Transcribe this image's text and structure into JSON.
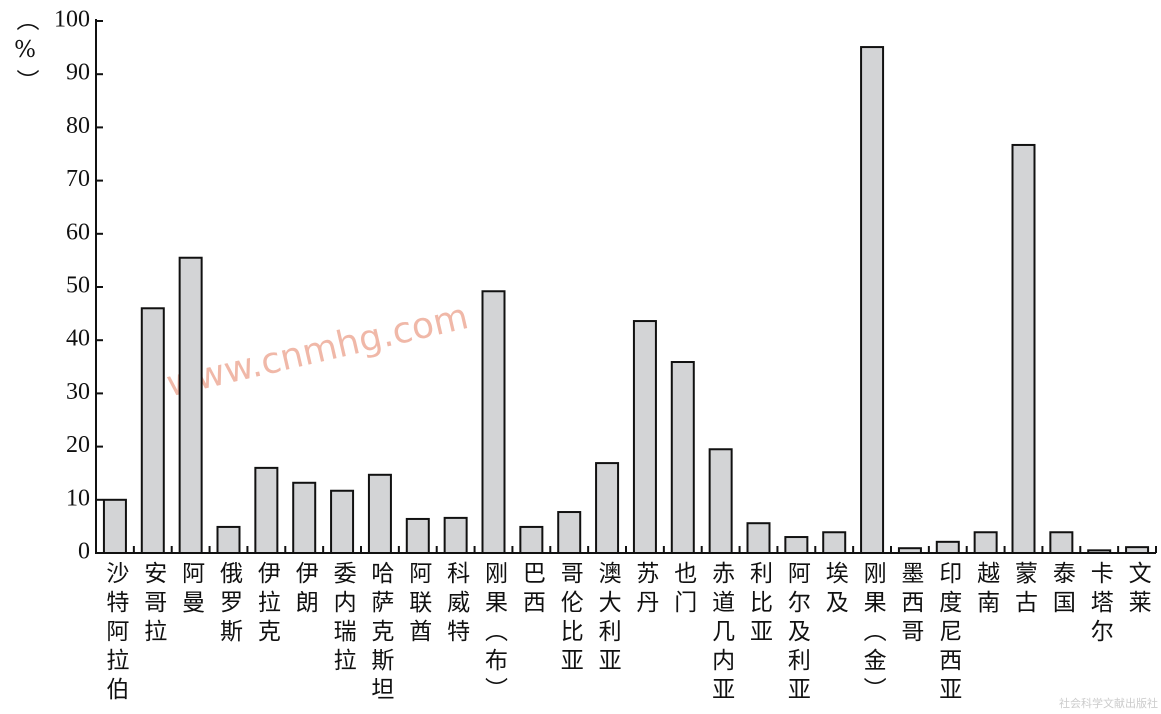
{
  "chart_data": {
    "type": "bar",
    "y_label": "（%）",
    "categories": [
      "沙特阿拉伯",
      "安哥拉",
      "阿曼",
      "俄罗斯",
      "伊拉克",
      "伊朗",
      "委内瑞拉",
      "哈萨克斯坦",
      "阿联酋",
      "科威特",
      "刚果（布）",
      "巴西",
      "哥伦比亚",
      "澳大利亚",
      "苏丹",
      "也门",
      "赤道几内亚",
      "利比亚",
      "阿尔及利亚",
      "埃及",
      "刚果（金）",
      "墨西哥",
      "印度尼西亚",
      "越南",
      "蒙古",
      "泰国",
      "卡塔尔",
      "文莱"
    ],
    "values": [
      10.0,
      46.0,
      55.5,
      4.9,
      16.0,
      13.2,
      11.7,
      14.7,
      6.4,
      6.6,
      49.2,
      4.9,
      7.7,
      16.9,
      43.6,
      35.9,
      19.5,
      5.6,
      3.0,
      3.9,
      95.1,
      0.9,
      2.1,
      3.9,
      76.7,
      3.9,
      0.5,
      1.1
    ],
    "color": "#d3d4d6",
    "ylim": [
      0,
      100
    ],
    "yticks": [
      0,
      10,
      20,
      30,
      40,
      50,
      60,
      70,
      80,
      90,
      100
    ],
    "grid": false,
    "watermark": "www.cnmhg.com",
    "publisher": "社会科学文献出版社"
  }
}
